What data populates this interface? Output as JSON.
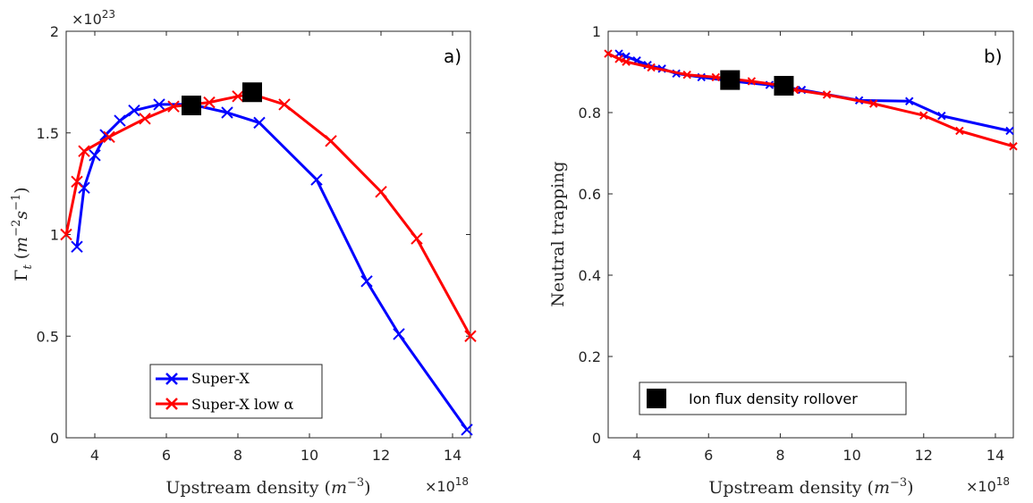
{
  "chart_data": [
    {
      "type": "line",
      "panel_label": "a)",
      "xlabel": "Upstream density (m^{-3})",
      "ylabel": "Γ_t (m^{-2}s^{-1})",
      "x_multiplier": "×10^18",
      "y_multiplier": "×10^23",
      "xlim": [
        3.2,
        14.5
      ],
      "ylim": [
        0,
        2
      ],
      "xticks": [
        "4",
        "6",
        "8",
        "10",
        "12",
        "14"
      ],
      "yticks": [
        "0",
        "0.5",
        "1",
        "1.5",
        "2"
      ],
      "legend_position": "bottom-center",
      "series": [
        {
          "name": "Super-X",
          "color": "#0000ff",
          "marker": "x",
          "x": [
            3.5,
            3.7,
            4.0,
            4.3,
            4.7,
            5.1,
            5.8,
            6.7,
            7.7,
            8.6,
            10.2,
            11.6,
            12.5,
            14.4
          ],
          "y": [
            0.94,
            1.23,
            1.39,
            1.49,
            1.56,
            1.61,
            1.64,
            1.64,
            1.6,
            1.55,
            1.27,
            0.77,
            0.51,
            0.04
          ]
        },
        {
          "name": "Super-X low α",
          "color": "#ff0000",
          "marker": "x",
          "x": [
            3.2,
            3.5,
            3.7,
            4.4,
            5.4,
            6.2,
            7.2,
            8.0,
            8.4,
            9.3,
            10.6,
            12.0,
            13.0,
            14.5
          ],
          "y": [
            1.0,
            1.26,
            1.41,
            1.48,
            1.57,
            1.63,
            1.65,
            1.68,
            1.69,
            1.64,
            1.46,
            1.21,
            0.98,
            0.5
          ]
        }
      ],
      "rollover_markers": [
        {
          "x": 6.7,
          "y": 1.635
        },
        {
          "x": 8.4,
          "y": 1.7
        }
      ]
    },
    {
      "type": "line",
      "panel_label": "b)",
      "xlabel": "Upstream density (m^{-3})",
      "ylabel": "Neutral trapping",
      "x_multiplier": "×10^18",
      "xlim": [
        3.2,
        14.5
      ],
      "ylim": [
        0,
        1
      ],
      "xticks": [
        "4",
        "6",
        "8",
        "10",
        "12",
        "14"
      ],
      "yticks": [
        "0",
        "0.2",
        "0.4",
        "0.6",
        "0.8",
        "1"
      ],
      "legend_position": "bottom-left",
      "legend_entry": "Ion flux density rollover",
      "series": [
        {
          "name": "Super-X",
          "color": "#0000ff",
          "marker": "x",
          "x": [
            3.5,
            3.7,
            4.0,
            4.3,
            4.7,
            5.1,
            5.8,
            6.7,
            7.7,
            8.6,
            10.2,
            11.6,
            12.5,
            14.4
          ],
          "y": [
            0.945,
            0.938,
            0.928,
            0.917,
            0.908,
            0.896,
            0.887,
            0.877,
            0.868,
            0.856,
            0.83,
            0.828,
            0.792,
            0.755
          ]
        },
        {
          "name": "Super-X low α",
          "color": "#ff0000",
          "marker": "x",
          "x": [
            3.2,
            3.5,
            3.7,
            4.4,
            5.4,
            6.2,
            7.2,
            8.0,
            8.4,
            9.3,
            10.6,
            12.0,
            13.0,
            14.5
          ],
          "y": [
            0.945,
            0.932,
            0.925,
            0.911,
            0.893,
            0.887,
            0.877,
            0.867,
            0.856,
            0.844,
            0.822,
            0.793,
            0.755,
            0.717
          ]
        }
      ],
      "rollover_markers": [
        {
          "x": 6.6,
          "y": 0.88
        },
        {
          "x": 8.1,
          "y": 0.866
        }
      ]
    }
  ]
}
